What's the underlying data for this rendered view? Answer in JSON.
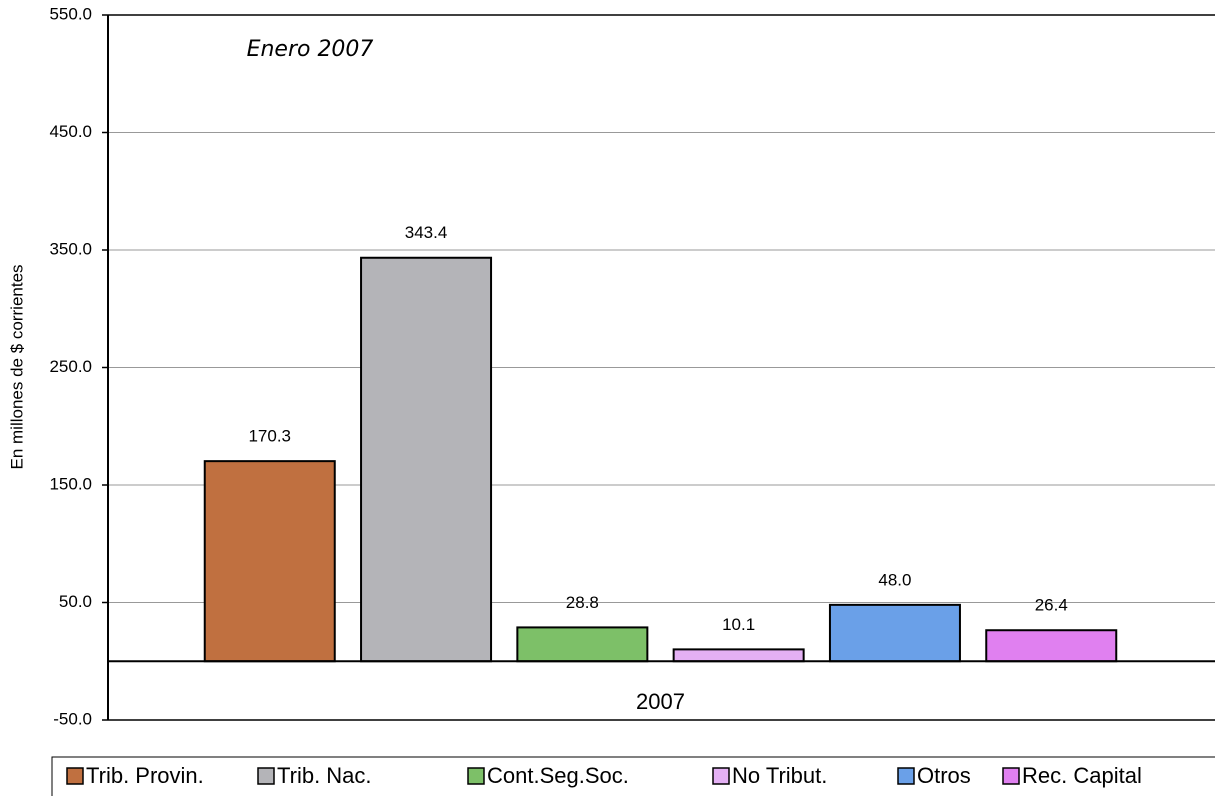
{
  "chart_data": {
    "type": "bar",
    "annotation": "Enero 2007",
    "y_label": "En millones de $ corrientes",
    "categories": [
      "2007"
    ],
    "series": [
      {
        "name": "Trib. Provin.",
        "color": "#c07040",
        "values": [
          170.3
        ],
        "value_labels": [
          "170.3"
        ]
      },
      {
        "name": "Trib. Nac.",
        "color": "#b4b4b8",
        "values": [
          343.4
        ],
        "value_labels": [
          "343.4"
        ]
      },
      {
        "name": "Cont.Seg.Soc.",
        "color": "#7dc068",
        "values": [
          28.8
        ],
        "value_labels": [
          "28.8"
        ]
      },
      {
        "name": "No Tribut.",
        "color": "#e4b0f4",
        "values": [
          10.1
        ],
        "value_labels": [
          "10.1"
        ]
      },
      {
        "name": "Otros",
        "color": "#6aa0e8",
        "values": [
          48
        ],
        "value_labels": [
          "48.0"
        ]
      },
      {
        "name": "Rec. Capital",
        "color": "#e080f0",
        "values": [
          26.4
        ],
        "value_labels": [
          "26.4"
        ]
      }
    ],
    "ylim": [
      -50,
      550
    ],
    "yticks": [
      {
        "value": -50,
        "label": "-50.0"
      },
      {
        "value": 50,
        "label": "50.0"
      },
      {
        "value": 150,
        "label": "150.0"
      },
      {
        "value": 250,
        "label": "250.0"
      },
      {
        "value": 350,
        "label": "350.0"
      },
      {
        "value": 450,
        "label": "450.0"
      },
      {
        "value": 550,
        "label": "550.0"
      }
    ],
    "grid": true,
    "legend": "bottom"
  }
}
